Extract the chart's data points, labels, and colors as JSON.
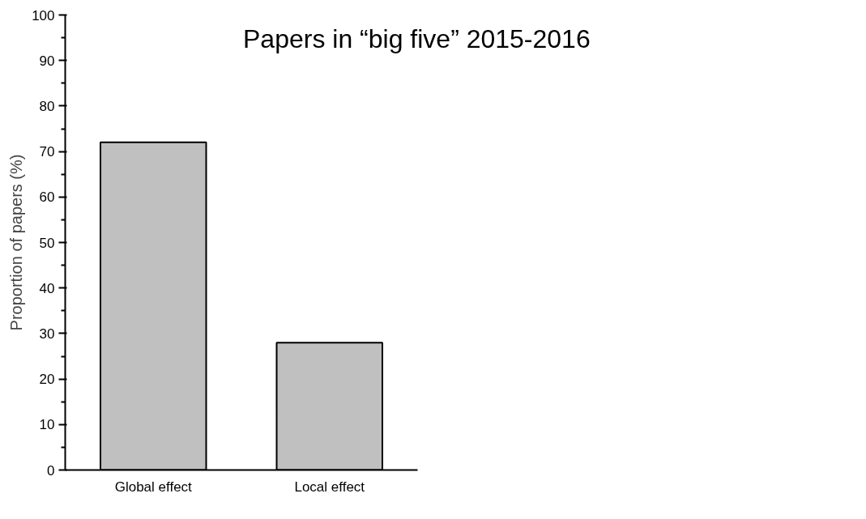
{
  "chart_data": {
    "type": "bar",
    "title": "Papers in “big five” 2015-2016",
    "ylabel": "Proportion of papers (%)",
    "categories": [
      "Global effect",
      "Local effect"
    ],
    "values": [
      72,
      28
    ],
    "color": "#c0c0c0",
    "ylim": [
      0,
      100
    ],
    "yticks": [
      0,
      {
        "value": 5,
        "label": null
      },
      10,
      {
        "value": 15,
        "label": null
      },
      20,
      {
        "value": 25,
        "label": null
      },
      30,
      {
        "value": 35,
        "label": null
      },
      40,
      {
        "value": 45,
        "label": null
      },
      50,
      {
        "value": 55,
        "label": null
      },
      60,
      {
        "value": 65,
        "label": null
      },
      70,
      {
        "value": 75,
        "label": null
      },
      80,
      {
        "value": 85,
        "label": null
      },
      90,
      {
        "value": 95,
        "label": null
      },
      100
    ],
    "grid": false
  }
}
